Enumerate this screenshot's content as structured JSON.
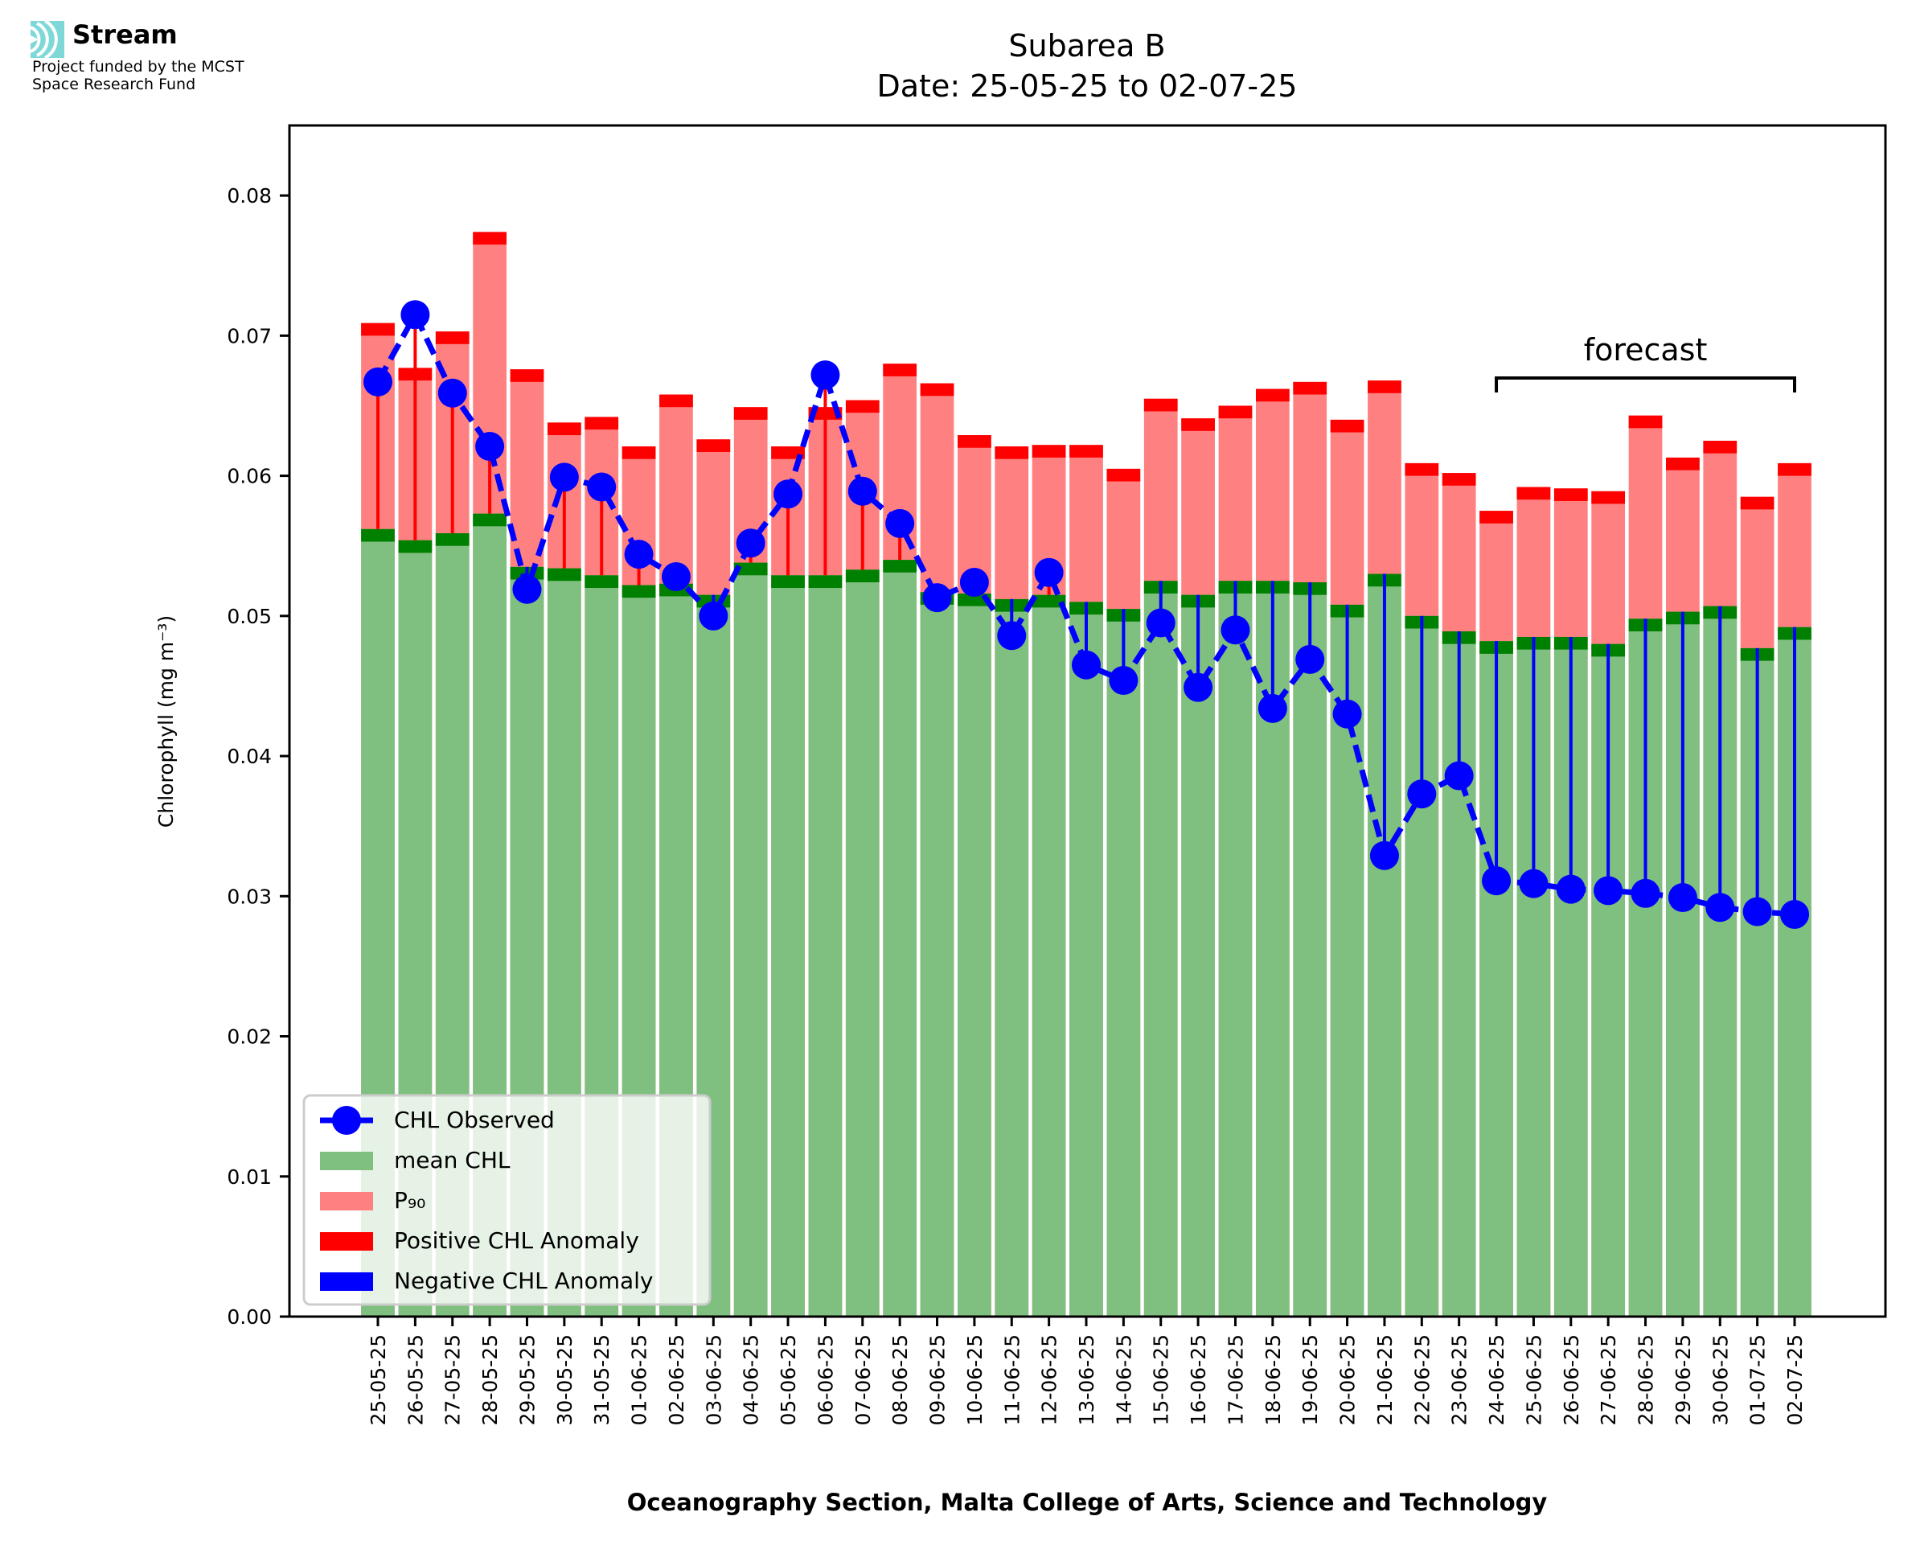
{
  "logo": {
    "name": "Stream",
    "line1": "Project funded by the MCST",
    "line2": "Space Research Fund",
    "icon": "stream-waves-icon",
    "icon_color": "#7fd8d8"
  },
  "chart_data": {
    "type": "bar",
    "title": "Subarea B",
    "subtitle": "Date: 25-05-25 to 02-07-25",
    "xlabel": "Oceanography Section, Malta College of Arts, Science and Technology",
    "ylabel": "Chlorophyll (mg m⁻³)",
    "ylim": [
      0,
      0.085
    ],
    "yticks": [
      0.0,
      0.01,
      0.02,
      0.03,
      0.04,
      0.05,
      0.06,
      0.07,
      0.08
    ],
    "ytick_labels": [
      "0.00",
      "0.01",
      "0.02",
      "0.03",
      "0.04",
      "0.05",
      "0.06",
      "0.07",
      "0.08"
    ],
    "grid": false,
    "legend_position": "lower-left",
    "categories": [
      "25-05-25",
      "26-05-25",
      "27-05-25",
      "28-05-25",
      "29-05-25",
      "30-05-25",
      "31-05-25",
      "01-06-25",
      "02-06-25",
      "03-06-25",
      "04-06-25",
      "05-06-25",
      "06-06-25",
      "07-06-25",
      "08-06-25",
      "09-06-25",
      "10-06-25",
      "11-06-25",
      "12-06-25",
      "13-06-25",
      "14-06-25",
      "15-06-25",
      "16-06-25",
      "17-06-25",
      "18-06-25",
      "19-06-25",
      "20-06-25",
      "21-06-25",
      "22-06-25",
      "23-06-25",
      "24-06-25",
      "25-06-25",
      "26-06-25",
      "27-06-25",
      "28-06-25",
      "29-06-25",
      "30-06-25",
      "01-07-25",
      "02-07-25"
    ],
    "series": [
      {
        "name": "mean CHL",
        "color": "#7fbf7f",
        "band_color": "#008000",
        "values": [
          0.0562,
          0.0554,
          0.0559,
          0.0573,
          0.0535,
          0.0534,
          0.0529,
          0.0522,
          0.0523,
          0.0515,
          0.0538,
          0.0529,
          0.0529,
          0.0533,
          0.054,
          0.0517,
          0.0516,
          0.0512,
          0.0515,
          0.051,
          0.0505,
          0.0525,
          0.0515,
          0.0525,
          0.0525,
          0.0524,
          0.0508,
          0.053,
          0.05,
          0.0489,
          0.0482,
          0.0485,
          0.0485,
          0.048,
          0.0498,
          0.0503,
          0.0507,
          0.0477,
          0.0492
        ]
      },
      {
        "name": "P₉₀",
        "color": "#ff8080",
        "band_color": "#ff0000",
        "values": [
          0.0709,
          0.0677,
          0.0703,
          0.0774,
          0.0676,
          0.0638,
          0.0642,
          0.0621,
          0.0658,
          0.0626,
          0.0649,
          0.0621,
          0.0649,
          0.0654,
          0.068,
          0.0666,
          0.0629,
          0.0621,
          0.0622,
          0.0622,
          0.0605,
          0.0655,
          0.0641,
          0.065,
          0.0662,
          0.0667,
          0.064,
          0.0668,
          0.0609,
          0.0602,
          0.0575,
          0.0592,
          0.0591,
          0.0589,
          0.0643,
          0.0613,
          0.0625,
          0.0585,
          0.0609
        ]
      },
      {
        "name": "CHL Observed",
        "color": "#0000ff",
        "values": [
          0.0667,
          0.0715,
          0.0659,
          0.0621,
          0.0519,
          0.0599,
          0.0592,
          0.0544,
          0.0528,
          0.05,
          0.0552,
          0.0587,
          0.0672,
          0.0589,
          0.0566,
          0.0513,
          0.0524,
          0.0486,
          0.0531,
          0.0465,
          0.0454,
          0.0495,
          0.0449,
          0.049,
          0.0434,
          0.0469,
          0.043,
          0.0329,
          0.0373,
          0.0386,
          0.0311,
          0.0309,
          0.0305,
          0.0304,
          0.0302,
          0.0299,
          0.0292,
          0.0289,
          0.0287
        ]
      }
    ],
    "legend": [
      {
        "label": "CHL Observed",
        "kind": "line-marker",
        "color": "#0000ff"
      },
      {
        "label": "mean CHL",
        "kind": "patch",
        "color": "#7fbf7f"
      },
      {
        "label": "P₉₀",
        "kind": "patch",
        "color": "#ff8080"
      },
      {
        "label": "Positive CHL Anomaly",
        "kind": "patch",
        "color": "#ff0000"
      },
      {
        "label": "Negative CHL Anomaly",
        "kind": "patch",
        "color": "#0000ff"
      }
    ],
    "annotations": [
      {
        "text": "forecast",
        "from": "24-06-25",
        "to": "02-07-25",
        "kind": "bracket"
      }
    ]
  }
}
